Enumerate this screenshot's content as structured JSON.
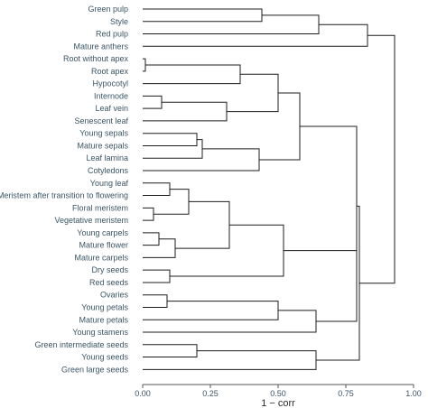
{
  "chart_data": {
    "type": "dendrogram",
    "xlabel": "1 − corr",
    "xlim": [
      0,
      1
    ],
    "xticks": [
      0,
      0.25,
      0.5,
      0.75,
      1
    ],
    "xtick_labels": [
      "0.00",
      "0.25",
      "0.50",
      "0.75",
      "1.00"
    ],
    "leaves": [
      "Green pulp",
      "Style",
      "Red pulp",
      "Mature anthers",
      "Root without apex",
      "Root apex",
      "Hypocotyl",
      "Internode",
      "Leaf vein",
      "Senescent leaf",
      "Young sepals",
      "Mature sepals",
      "Leaf lamina",
      "Cotyledons",
      "Young leaf",
      "Meristem after transition to flowering",
      "Floral meristem",
      "Vegetative meristem",
      "Young carpels",
      "Mature flower",
      "Mature carpels",
      "Dry seeds",
      "Red seeds",
      "Ovaries",
      "Young petals",
      "Mature petals",
      "Young stamens",
      "Green intermediate seeds",
      "Young seeds",
      "Green large seeds"
    ],
    "merges": [
      {
        "a": "Green pulp",
        "b": "Style",
        "h": 0.44
      },
      {
        "a": "m1",
        "b": "Red pulp",
        "h": 0.65
      },
      {
        "a": "m2",
        "b": "Mature anthers",
        "h": 0.83
      },
      {
        "a": "Root without apex",
        "b": "Root apex",
        "h": 0.01
      },
      {
        "a": "m4",
        "b": "Hypocotyl",
        "h": 0.36
      },
      {
        "a": "Internode",
        "b": "Leaf vein",
        "h": 0.07
      },
      {
        "a": "m6",
        "b": "Senescent leaf",
        "h": 0.31
      },
      {
        "a": "m5",
        "b": "m7",
        "h": 0.5
      },
      {
        "a": "Young sepals",
        "b": "Mature sepals",
        "h": 0.2
      },
      {
        "a": "m9",
        "b": "Leaf lamina",
        "h": 0.22
      },
      {
        "a": "m10",
        "b": "Cotyledons",
        "h": 0.43
      },
      {
        "a": "m8",
        "b": "m11",
        "h": 0.58
      },
      {
        "a": "Floral meristem",
        "b": "Vegetative meristem",
        "h": 0.04
      },
      {
        "a": "Young leaf",
        "b": "Meristem after transition to flowering",
        "h": 0.1
      },
      {
        "a": "m14",
        "b": "m13",
        "h": 0.17
      },
      {
        "a": "Young carpels",
        "b": "Mature flower",
        "h": 0.06
      },
      {
        "a": "m16",
        "b": "Mature carpels",
        "h": 0.12
      },
      {
        "a": "m15",
        "b": "m17",
        "h": 0.32
      },
      {
        "a": "Dry seeds",
        "b": "Red seeds",
        "h": 0.1
      },
      {
        "a": "m18",
        "b": "m19",
        "h": 0.52
      },
      {
        "a": "Ovaries",
        "b": "Young petals",
        "h": 0.09
      },
      {
        "a": "m21",
        "b": "Mature petals",
        "h": 0.5
      },
      {
        "a": "m22",
        "b": "Young stamens",
        "h": 0.64
      },
      {
        "a": "m20",
        "b": "m23",
        "h": 0.79
      },
      {
        "a": "m12",
        "b": "m24",
        "h": 0.79
      },
      {
        "a": "Green intermediate seeds",
        "b": "Young seeds",
        "h": 0.2
      },
      {
        "a": "m26",
        "b": "Green large seeds",
        "h": 0.64
      },
      {
        "a": "m25",
        "b": "m27",
        "h": 0.8
      },
      {
        "a": "m3",
        "b": "m28",
        "h": 0.93
      }
    ]
  }
}
